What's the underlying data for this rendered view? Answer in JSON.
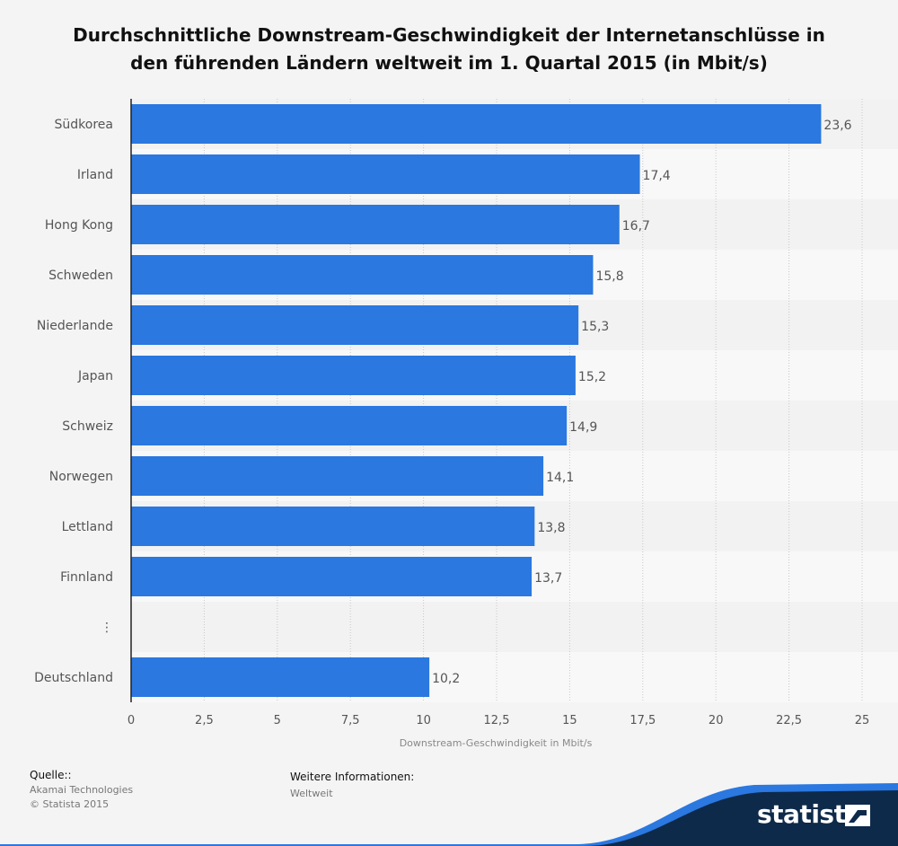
{
  "title": "Durchschnittliche Downstream-Geschwindigkeit der Internetanschlüsse in den führenden Ländern weltweit im 1. Quartal 2015 (in Mbit/s)",
  "colors": {
    "bar": "#2a78e0",
    "band_light": "#f8f8f8",
    "band_dark": "#f2f2f2",
    "text": "#555555"
  },
  "chart_data": {
    "type": "bar",
    "orientation": "horizontal",
    "categories": [
      "Südkorea",
      "Irland",
      "Hong Kong",
      "Schweden",
      "Niederlande",
      "Japan",
      "Schweiz",
      "Norwegen",
      "Lettland",
      "Finnland",
      "⋮",
      "Deutschland"
    ],
    "values": [
      23.6,
      17.4,
      16.7,
      15.8,
      15.3,
      15.2,
      14.9,
      14.1,
      13.8,
      13.7,
      null,
      10.2
    ],
    "value_labels": [
      "23,6",
      "17,4",
      "16,7",
      "15,8",
      "15,3",
      "15,2",
      "14,9",
      "14,1",
      "13,8",
      "13,7",
      "",
      "10,2"
    ],
    "xlabel": "Downstream-Geschwindigkeit in Mbit/s",
    "xlim": [
      0,
      25
    ],
    "xticks": [
      0,
      2.5,
      5,
      7.5,
      10,
      12.5,
      15,
      17.5,
      20,
      22.5,
      25
    ],
    "xtick_labels": [
      "0",
      "2,5",
      "5",
      "7,5",
      "10",
      "12,5",
      "15",
      "17,5",
      "20",
      "22,5",
      "25"
    ],
    "grid": "vertical-dotted",
    "legend": "none"
  },
  "source": {
    "heading": "Quelle::",
    "lines": [
      "Akamai Technologies",
      "© Statista 2015"
    ]
  },
  "info": {
    "heading": "Weitere Informationen:",
    "line": "Weltweit"
  },
  "brand": "statista"
}
